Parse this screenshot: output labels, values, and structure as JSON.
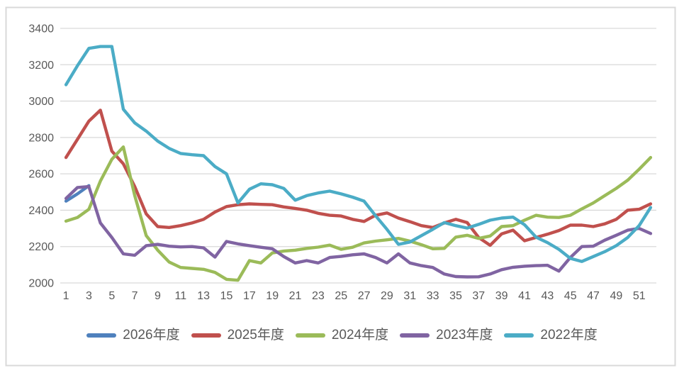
{
  "chart_data": {
    "type": "line",
    "title": "",
    "xlabel": "",
    "ylabel": "",
    "x_unit": "week",
    "weeks": 52,
    "ylim": [
      2000,
      3400
    ],
    "y_tick_step": 200,
    "grid": true,
    "legend_position": "bottom",
    "y_ticks": [
      "3400",
      "3200",
      "3000",
      "2800",
      "2600",
      "2400",
      "2200",
      "2000"
    ],
    "x_tick_labels": [
      "1",
      "3",
      "5",
      "7",
      "9",
      "11",
      "13",
      "15",
      "17",
      "19",
      "21",
      "23",
      "25",
      "27",
      "29",
      "31",
      "33",
      "35",
      "37",
      "39",
      "41",
      "43",
      "45",
      "47",
      "49",
      "51"
    ],
    "series": [
      {
        "name": "2026年度",
        "color": "#4F81BD",
        "values": [
          2450,
          2490,
          2535
        ]
      },
      {
        "name": "2025年度",
        "color": "#C0504D",
        "values": [
          2690,
          2790,
          2890,
          2950,
          2725,
          2655,
          2530,
          2380,
          2310,
          2305,
          2315,
          2330,
          2350,
          2390,
          2420,
          2430,
          2435,
          2432,
          2430,
          2418,
          2410,
          2400,
          2383,
          2372,
          2368,
          2350,
          2338,
          2372,
          2385,
          2357,
          2337,
          2315,
          2305,
          2330,
          2350,
          2332,
          2250,
          2207,
          2270,
          2290,
          2232,
          2250,
          2268,
          2288,
          2318,
          2318,
          2310,
          2325,
          2350,
          2400,
          2405,
          2435
        ]
      },
      {
        "name": "2024年度",
        "color": "#9BBB59",
        "values": [
          2340,
          2360,
          2405,
          2560,
          2680,
          2748,
          2480,
          2260,
          2180,
          2115,
          2085,
          2080,
          2075,
          2058,
          2020,
          2015,
          2123,
          2110,
          2165,
          2175,
          2180,
          2190,
          2197,
          2208,
          2185,
          2196,
          2220,
          2230,
          2237,
          2245,
          2230,
          2210,
          2188,
          2190,
          2252,
          2262,
          2245,
          2258,
          2310,
          2315,
          2345,
          2372,
          2362,
          2360,
          2372,
          2407,
          2440,
          2480,
          2520,
          2565,
          2625,
          2690
        ]
      },
      {
        "name": "2023年度",
        "color": "#8064A2",
        "values": [
          2465,
          2525,
          2530,
          2330,
          2250,
          2160,
          2152,
          2205,
          2212,
          2202,
          2198,
          2200,
          2193,
          2142,
          2228,
          2215,
          2205,
          2196,
          2188,
          2145,
          2110,
          2123,
          2110,
          2140,
          2146,
          2155,
          2160,
          2140,
          2110,
          2160,
          2110,
          2095,
          2085,
          2049,
          2035,
          2033,
          2034,
          2049,
          2073,
          2086,
          2092,
          2095,
          2097,
          2065,
          2140,
          2200,
          2202,
          2235,
          2262,
          2290,
          2300,
          2272
        ]
      },
      {
        "name": "2022年度",
        "color": "#4BACC6",
        "values": [
          3090,
          3195,
          3290,
          3300,
          3300,
          2955,
          2880,
          2835,
          2780,
          2740,
          2712,
          2705,
          2700,
          2640,
          2600,
          2440,
          2515,
          2545,
          2540,
          2520,
          2455,
          2480,
          2495,
          2505,
          2490,
          2472,
          2450,
          2370,
          2295,
          2212,
          2225,
          2260,
          2295,
          2332,
          2315,
          2302,
          2322,
          2345,
          2357,
          2362,
          2320,
          2252,
          2222,
          2185,
          2135,
          2118,
          2145,
          2172,
          2205,
          2250,
          2315,
          2415
        ]
      }
    ]
  },
  "style": {
    "background": "#FFFFFF",
    "border_color": "#D9D9D9",
    "grid_color": "#D9D9D9",
    "axis_text_color": "#595959"
  }
}
